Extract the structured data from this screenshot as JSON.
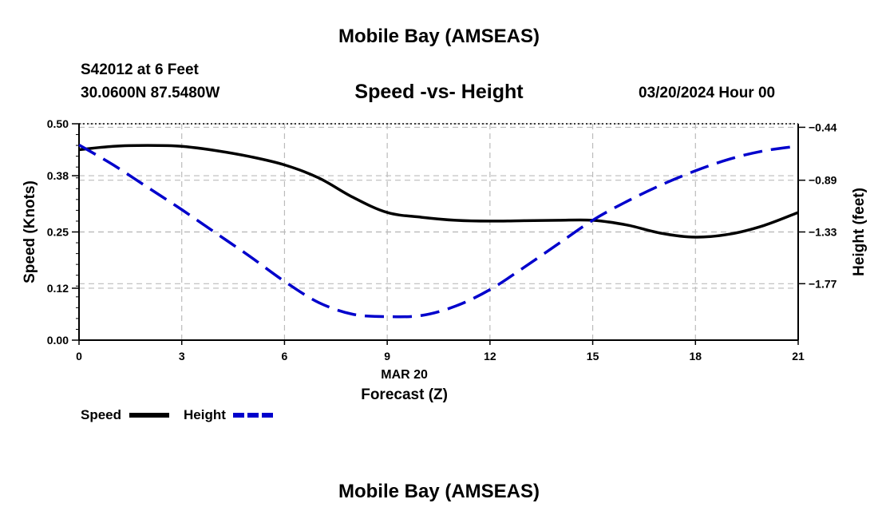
{
  "header": {
    "title": "Mobile Bay (AMSEAS)",
    "station": "S42012 at 6 Feet",
    "location": "30.0600N  87.5480W",
    "datetime": "03/20/2024 Hour 00"
  },
  "footer": {
    "title": "Mobile Bay (AMSEAS)"
  },
  "colors": {
    "speed": "#000000",
    "height": "#0000cc",
    "grid": "#bbbbbb"
  },
  "chart_data": {
    "type": "line",
    "title": "Speed -vs- Height",
    "xlabel": "Forecast (Z)",
    "xsublabel": "MAR 20",
    "ylabel": "Speed (Knots)",
    "y2label": "Height (feet)",
    "xlim": [
      0,
      21
    ],
    "ylim": [
      0,
      0.5
    ],
    "y2lim": [
      -2.25,
      -0.41
    ],
    "xticks": [
      0,
      3,
      6,
      9,
      12,
      15,
      18,
      21
    ],
    "yticks": [
      "0.00",
      "0.12",
      "0.25",
      "0.38",
      "0.50"
    ],
    "y2ticks": [
      "-0.44",
      "-0.89",
      "-1.33",
      "-1.77"
    ],
    "grid": true,
    "legend": "bottom-left",
    "series": [
      {
        "name": "Speed",
        "axis": "left",
        "style": "solid",
        "x": [
          0,
          1,
          2,
          3,
          4,
          5,
          6,
          7,
          8,
          9,
          10,
          11,
          12,
          13,
          14,
          15,
          16,
          17,
          18,
          19,
          20,
          21
        ],
        "values": [
          0.44,
          0.448,
          0.45,
          0.448,
          0.438,
          0.424,
          0.405,
          0.375,
          0.33,
          0.295,
          0.284,
          0.277,
          0.275,
          0.276,
          0.277,
          0.277,
          0.266,
          0.247,
          0.238,
          0.245,
          0.265,
          0.295
        ]
      },
      {
        "name": "Height",
        "axis": "right",
        "style": "dashed",
        "x": [
          0,
          1,
          2,
          3,
          4,
          5,
          6,
          7,
          8,
          9,
          10,
          11,
          12,
          13,
          14,
          15,
          16,
          17,
          18,
          19,
          20,
          21
        ],
        "values": [
          -0.59,
          -0.76,
          -0.95,
          -1.14,
          -1.34,
          -1.54,
          -1.75,
          -1.93,
          -2.03,
          -2.05,
          -2.04,
          -1.96,
          -1.82,
          -1.63,
          -1.43,
          -1.23,
          -1.07,
          -0.93,
          -0.81,
          -0.71,
          -0.64,
          -0.6
        ]
      }
    ]
  }
}
